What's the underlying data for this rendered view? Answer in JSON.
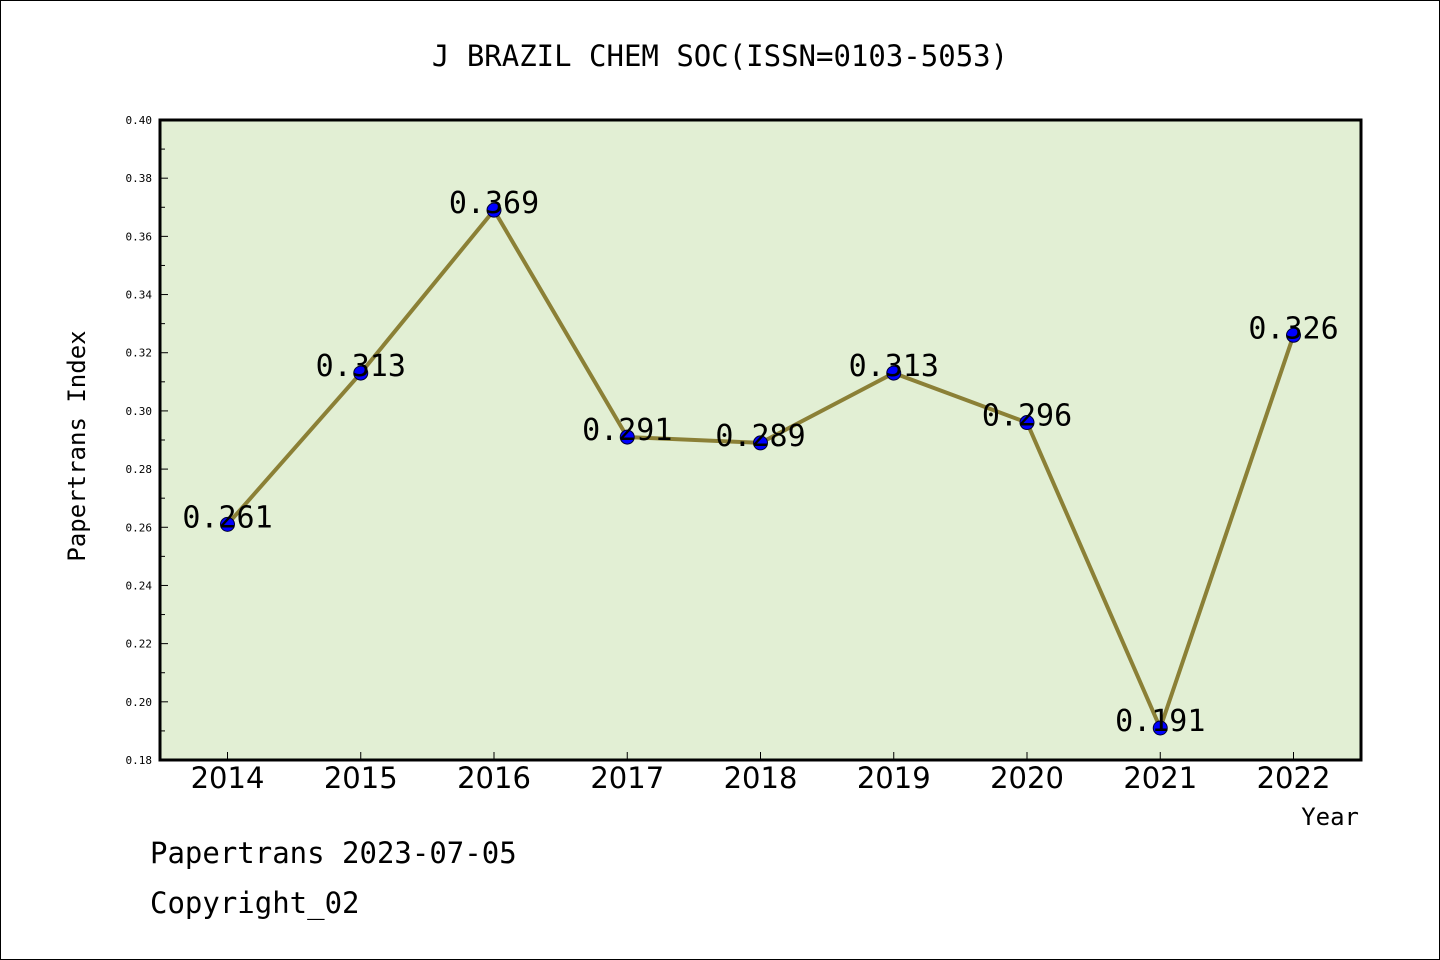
{
  "chart_data": {
    "type": "line",
    "title": "J BRAZIL CHEM SOC(ISSN=0103-5053)",
    "xlabel": "Year",
    "ylabel": "Papertrans Index",
    "categories": [
      "2014",
      "2015",
      "2016",
      "2017",
      "2018",
      "2019",
      "2020",
      "2021",
      "2022"
    ],
    "values": [
      0.261,
      0.313,
      0.369,
      0.291,
      0.289,
      0.313,
      0.296,
      0.191,
      0.326
    ],
    "data_labels": [
      "0.261",
      "0.313",
      "0.369",
      "0.291",
      "0.289",
      "0.313",
      "0.296",
      "0.191",
      "0.326"
    ],
    "ylim": [
      0.18,
      0.4
    ],
    "yticks": [
      "0.18",
      "0.20",
      "0.22",
      "0.24",
      "0.26",
      "0.28",
      "0.30",
      "0.32",
      "0.34",
      "0.36",
      "0.38",
      "0.40"
    ],
    "grid": false,
    "colors": {
      "plot_background": "#e2efd4",
      "line": "#8b8036",
      "marker": "#0000ff"
    }
  },
  "footer": {
    "date_line": "Papertrans 2023-07-05",
    "copyright": "Copyright_02"
  }
}
